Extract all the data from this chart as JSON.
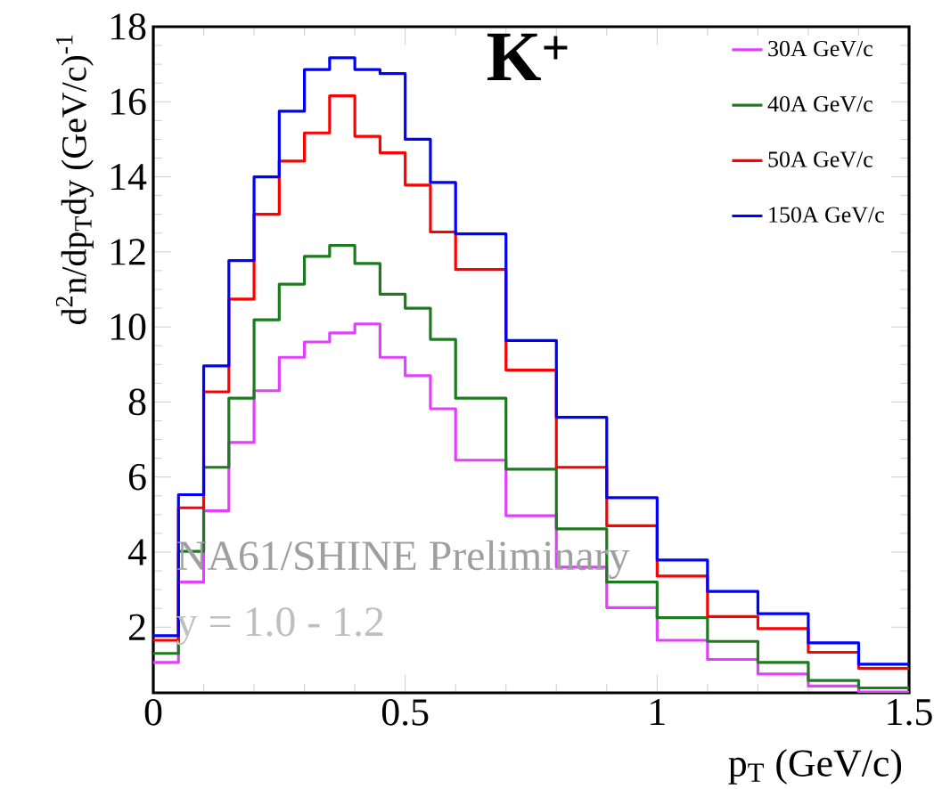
{
  "chart_data": {
    "type": "histogram",
    "title": "K$^{+}$",
    "xlabel": "p$_{T}$ (GeV/c)",
    "ylabel": "d$^{2}$n/dp$_{T}$dy (GeV/c)$^{-1}$",
    "annotations": [
      "NA61/SHINE Preliminary",
      "y = 1.0 - 1.2"
    ],
    "bins": [
      0,
      0.05,
      0.1,
      0.15,
      0.2,
      0.25,
      0.3,
      0.35,
      0.4,
      0.45,
      0.5,
      0.55,
      0.6,
      0.7,
      0.8,
      0.9,
      1.0,
      1.1,
      1.2,
      1.3,
      1.4,
      1.5
    ],
    "series": [
      {
        "name": "30A GeV/c",
        "color": "#e040fb",
        "values": [
          1.06,
          3.2,
          5.1,
          6.92,
          8.3,
          9.19,
          9.6,
          9.84,
          10.08,
          9.19,
          8.7,
          7.82,
          6.45,
          4.97,
          3.6,
          2.52,
          1.65,
          1.14,
          0.75,
          0.43,
          0.27
        ]
      },
      {
        "name": "40A GeV/c",
        "color": "#1e7a1e",
        "values": [
          1.3,
          4.02,
          6.26,
          8.1,
          10.19,
          11.14,
          11.88,
          12.17,
          11.69,
          10.87,
          10.5,
          9.67,
          8.1,
          6.21,
          4.62,
          3.2,
          2.25,
          1.62,
          1.06,
          0.58,
          0.38
        ]
      },
      {
        "name": "50A GeV/c",
        "color": "#ff0000",
        "values": [
          1.65,
          5.18,
          8.27,
          10.74,
          13.0,
          14.42,
          15.17,
          16.16,
          15.08,
          14.64,
          13.78,
          12.53,
          11.53,
          8.85,
          6.26,
          4.7,
          3.36,
          2.28,
          1.96,
          1.33,
          0.9
        ]
      },
      {
        "name": "150A GeV/c",
        "color": "#0000ff",
        "values": [
          1.77,
          5.53,
          8.96,
          11.77,
          14.0,
          15.75,
          16.86,
          17.17,
          16.86,
          16.75,
          15.0,
          13.85,
          12.48,
          9.64,
          7.59,
          5.45,
          3.79,
          2.95,
          2.36,
          1.58,
          1.01
        ]
      }
    ],
    "xlim": [
      0,
      1.5
    ],
    "ylim": [
      0.25,
      18
    ],
    "xticks": [
      0,
      0.5,
      1,
      1.5
    ],
    "yticks": [
      2,
      4,
      6,
      8,
      10,
      12,
      14,
      16,
      18
    ],
    "legend": "top right"
  }
}
